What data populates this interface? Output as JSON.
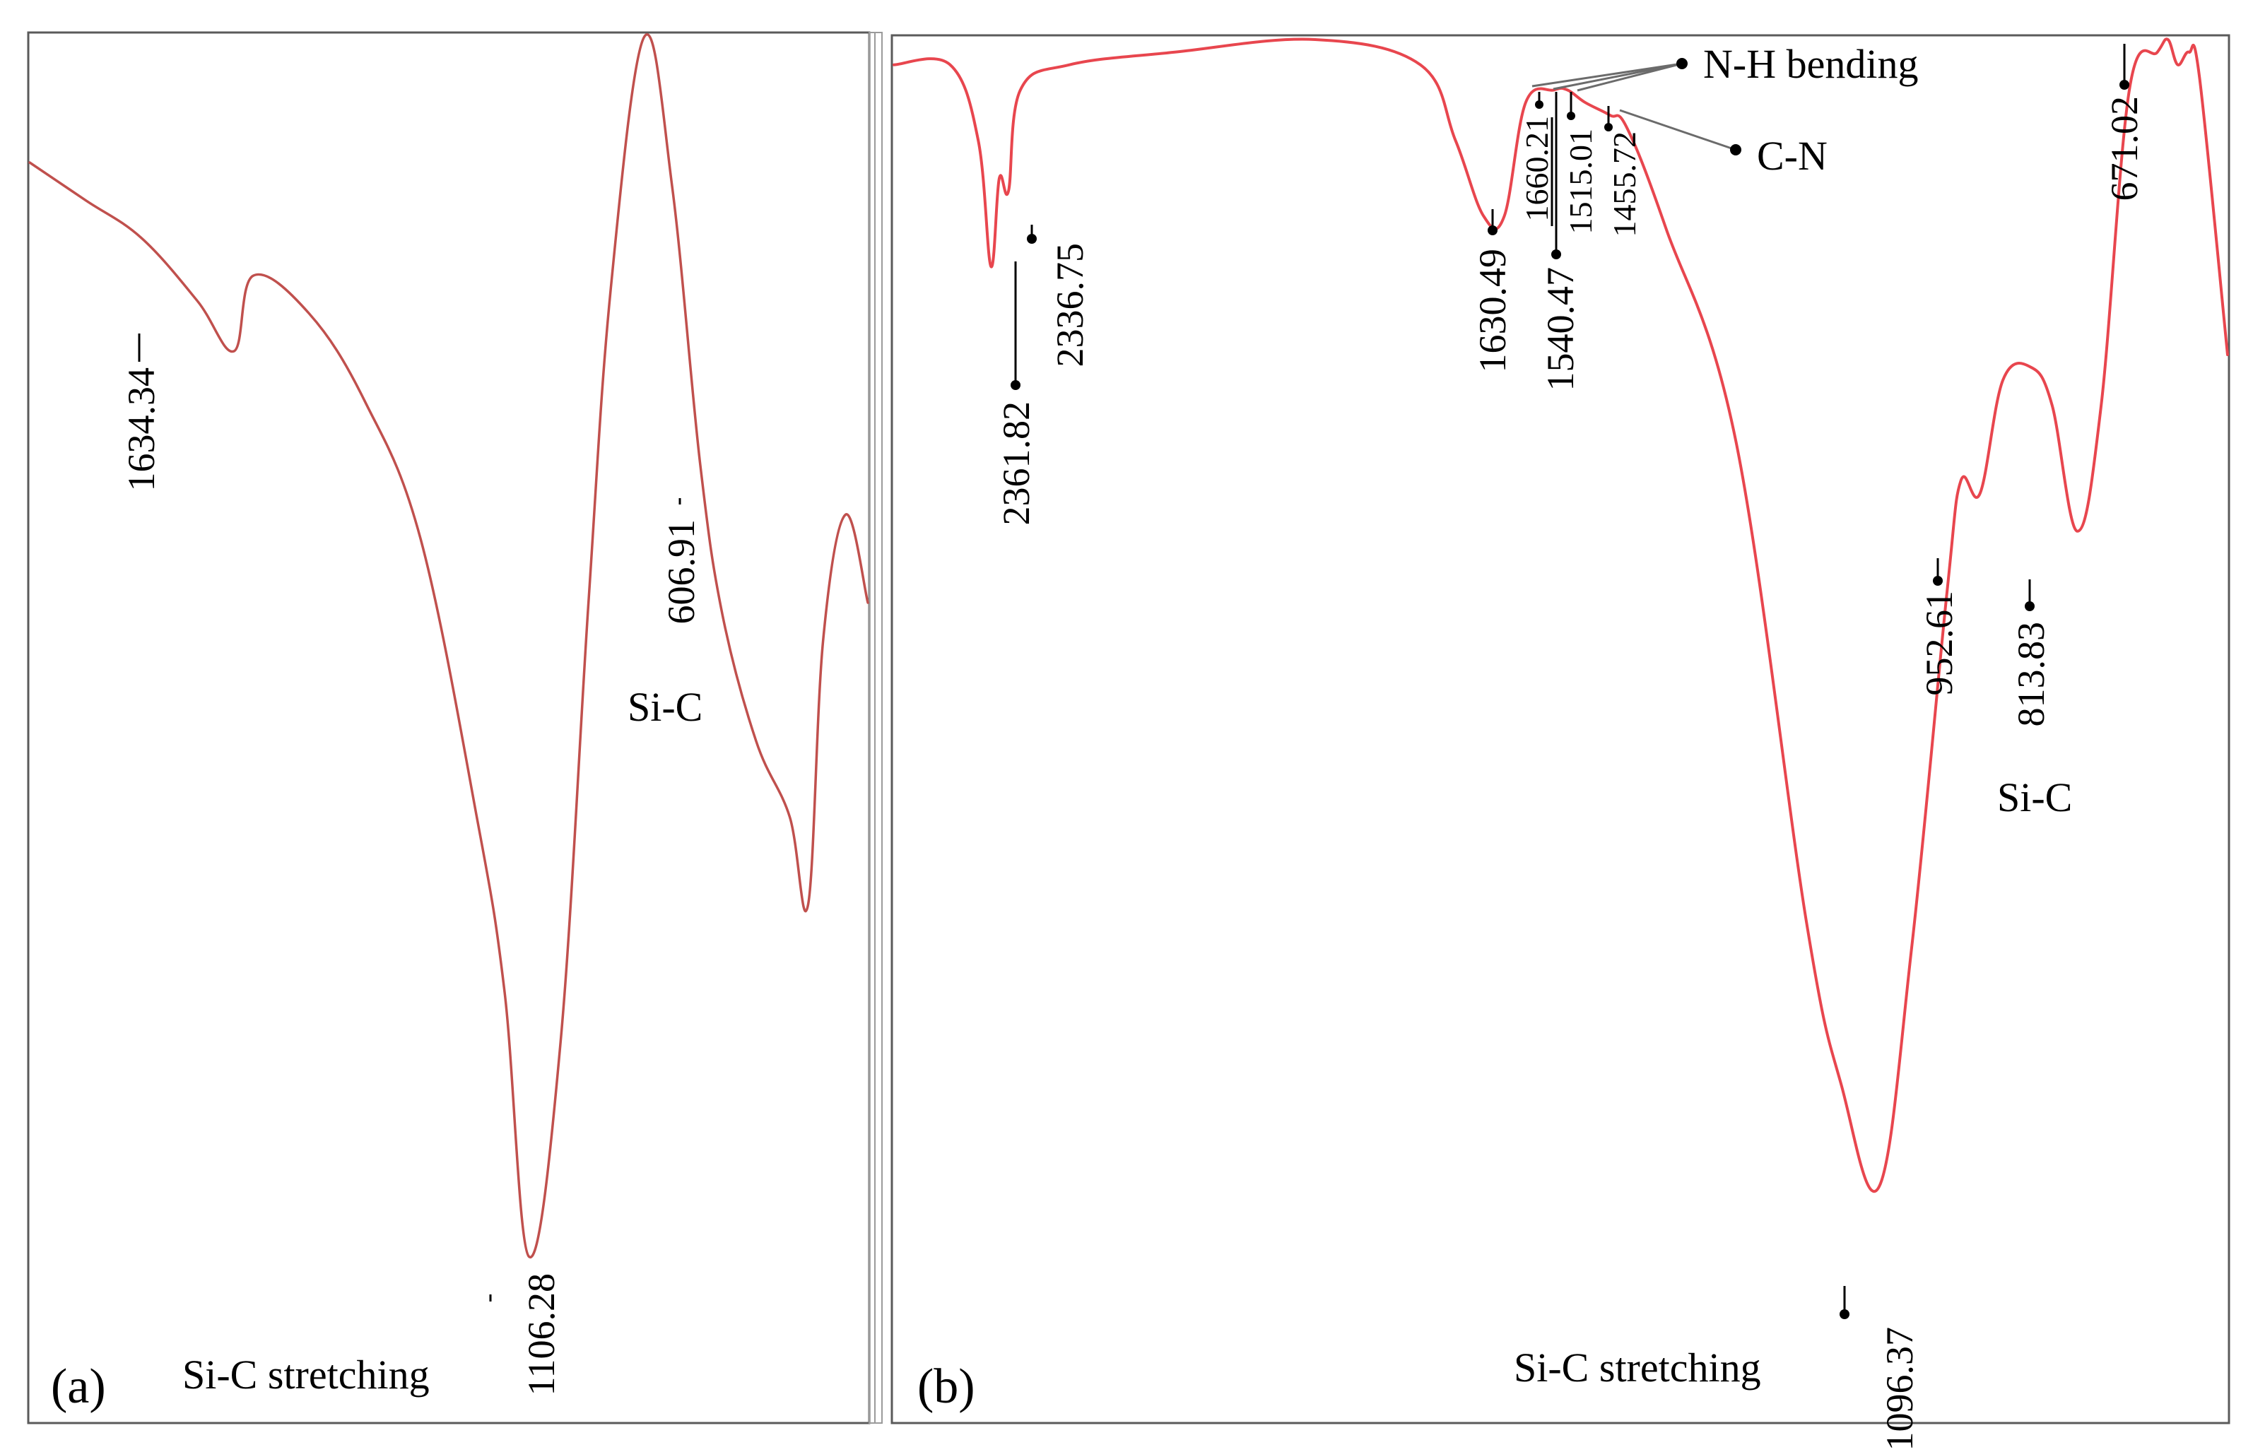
{
  "chart_data": [
    {
      "type": "line",
      "panel_label": "(a)",
      "series_color": "#c0504d",
      "xlim": [
        2000,
        500
      ],
      "ylim": [
        0,
        100
      ],
      "x": [
        2000,
        1900,
        1800,
        1700,
        1634.34,
        1600,
        1500,
        1400,
        1300,
        1200,
        1150,
        1106.28,
        1050,
        1000,
        960,
        900,
        850,
        800,
        760,
        700,
        640,
        606.91,
        580,
        540,
        500
      ],
      "y": [
        90,
        87,
        84,
        79,
        75,
        81,
        78,
        71,
        60,
        38,
        24,
        3,
        20,
        55,
        80,
        100,
        88,
        66,
        54,
        44,
        38,
        31,
        52,
        62,
        55
      ],
      "peaks": [
        {
          "label": "1634.34",
          "x": 1634.34
        },
        {
          "label": "606.91",
          "x": 606.91
        },
        {
          "label": "1106.28",
          "x": 1106.28
        }
      ],
      "annotations": [
        "Si-C",
        "Si-C stretching"
      ]
    },
    {
      "type": "line",
      "panel_label": "(b)",
      "series_color": "#e8464e",
      "xlim": [
        2500,
        600
      ],
      "ylim": [
        0,
        100
      ],
      "x": [
        2500,
        2420,
        2380,
        2361.82,
        2350,
        2336.75,
        2320,
        2250,
        2100,
        1900,
        1750,
        1700,
        1660,
        1630.49,
        1600,
        1560,
        1540.47,
        1515.01,
        1480,
        1455.72,
        1400,
        1300,
        1200,
        1150,
        1096.37,
        1050,
        1000,
        980,
        952.61,
        920,
        880,
        850,
        813.83,
        780,
        740,
        700,
        685,
        671.02,
        655,
        640,
        600
      ],
      "y": [
        98,
        98,
        92,
        82,
        89,
        88,
        96,
        98,
        99,
        100,
        98,
        92,
        86,
        86,
        95,
        96,
        96,
        95,
        94,
        93,
        85,
        68,
        30,
        17,
        9,
        28,
        56,
        65,
        64,
        73,
        74,
        71,
        61,
        71,
        96,
        99,
        100,
        98,
        99,
        97,
        75
      ],
      "peaks": [
        {
          "label": "2361.82",
          "x": 2361.82
        },
        {
          "label": "2336.75",
          "x": 2336.75
        },
        {
          "label": "1630.49",
          "x": 1630.49
        },
        {
          "label": "1540.47",
          "x": 1540.47
        },
        {
          "label": "1660.21",
          "x": 1660.21
        },
        {
          "label": "1515.01",
          "x": 1515.01
        },
        {
          "label": "1455.72",
          "x": 1455.72
        },
        {
          "label": "671.02",
          "x": 671.02
        },
        {
          "label": "952.61",
          "x": 952.61
        },
        {
          "label": "813.83",
          "x": 813.83
        },
        {
          "label": "1096.37",
          "x": 1096.37
        }
      ],
      "annotations": [
        "N-H bending",
        "C-N",
        "Si-C",
        "Si-C stretching"
      ]
    }
  ]
}
